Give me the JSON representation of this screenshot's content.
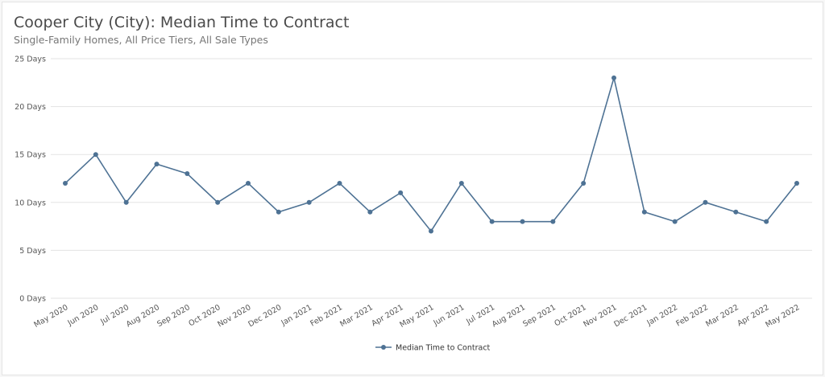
{
  "chart_data": {
    "type": "line",
    "title": "Cooper City (City): Median Time to Contract",
    "subtitle": "Single-Family Homes, All Price Tiers, All Sale Types",
    "categories": [
      "May 2020",
      "Jun 2020",
      "Jul 2020",
      "Aug 2020",
      "Sep 2020",
      "Oct 2020",
      "Nov 2020",
      "Dec 2020",
      "Jan 2021",
      "Feb 2021",
      "Mar 2021",
      "Apr 2021",
      "May 2021",
      "Jun 2021",
      "Jul 2021",
      "Aug 2021",
      "Sep 2021",
      "Oct 2021",
      "Nov 2021",
      "Dec 2021",
      "Jan 2022",
      "Feb 2022",
      "Mar 2022",
      "Apr 2022",
      "May 2022"
    ],
    "series": [
      {
        "name": "Median Time to Contract",
        "values": [
          12,
          15,
          10,
          14,
          13,
          10,
          12,
          9,
          10,
          12,
          9,
          11,
          7,
          12,
          8,
          8,
          8,
          12,
          23,
          9,
          8,
          10,
          9,
          8,
          12
        ],
        "color": "#4e7294"
      }
    ],
    "ylim": [
      0,
      25
    ],
    "yticks": [
      0,
      5,
      10,
      15,
      20,
      25
    ],
    "ytick_labels": [
      "0 Days",
      "5 Days",
      "10 Days",
      "15 Days",
      "20 Days",
      "25 Days"
    ],
    "grid": true,
    "legend": "bottom-center"
  }
}
